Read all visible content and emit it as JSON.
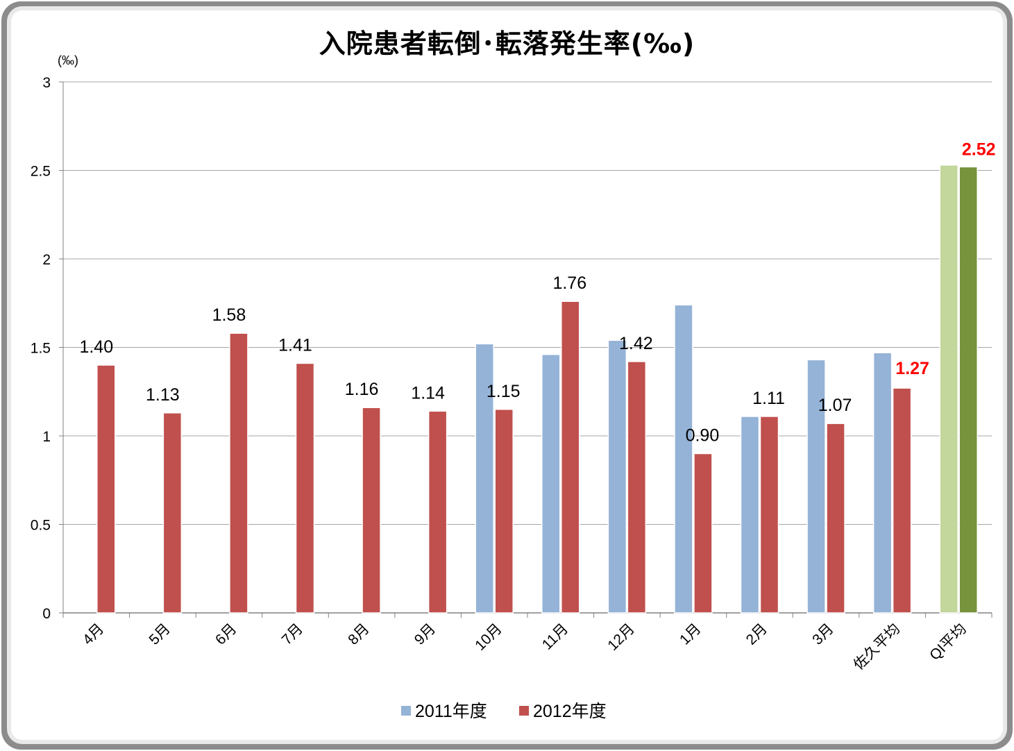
{
  "chart_data": {
    "type": "bar",
    "title": "入院患者転倒･転落発生率(‰)",
    "ylabel": "(‰)",
    "xlabel": "",
    "ylim": [
      0,
      3
    ],
    "yticks": [
      "0",
      "0.5",
      "1",
      "1.5",
      "2",
      "2.5",
      "3"
    ],
    "grid": true,
    "legend_position": "bottom",
    "categories": [
      "4月",
      "5月",
      "6月",
      "7月",
      "8月",
      "9月",
      "10月",
      "11月",
      "12月",
      "1月",
      "2月",
      "3月",
      "佐久平均",
      "QI平均"
    ],
    "series": [
      {
        "name": "2011年度",
        "color": "#95b3d7",
        "values": [
          null,
          null,
          null,
          null,
          null,
          null,
          1.52,
          1.46,
          1.54,
          1.74,
          1.11,
          1.43,
          1.47,
          2.53
        ]
      },
      {
        "name": "2012年度",
        "color": "#c0504d",
        "values": [
          1.4,
          1.13,
          1.58,
          1.41,
          1.16,
          1.14,
          1.15,
          1.76,
          1.42,
          0.9,
          1.11,
          1.07,
          1.27,
          2.52
        ]
      }
    ],
    "qi_colors": {
      "2011年度": "#c3d69b",
      "2012年度": "#77933c"
    },
    "data_labels": [
      "1.40",
      "1.13",
      "1.58",
      "1.41",
      "1.16",
      "1.14",
      "1.15",
      "1.76",
      "1.42",
      "0.90",
      "1.11",
      "1.07",
      "1.27",
      "2.52"
    ],
    "highlight_label_color": "#ff0000"
  }
}
